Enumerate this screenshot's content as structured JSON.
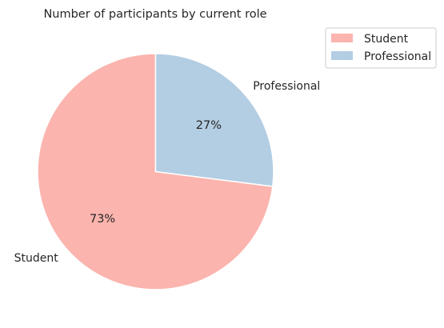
{
  "chart_data": {
    "type": "pie",
    "title": "Number of participants by current role",
    "categories": [
      "Student",
      "Professional"
    ],
    "values": [
      73,
      27
    ],
    "percent_labels": [
      "73%",
      "27%"
    ],
    "colors": [
      "#fbb4ae",
      "#b3cde3"
    ],
    "start_angle_deg": 90,
    "direction": "counterclockwise",
    "legend": {
      "placement": "upper-right-outside",
      "entries": [
        "Student",
        "Professional"
      ]
    }
  }
}
